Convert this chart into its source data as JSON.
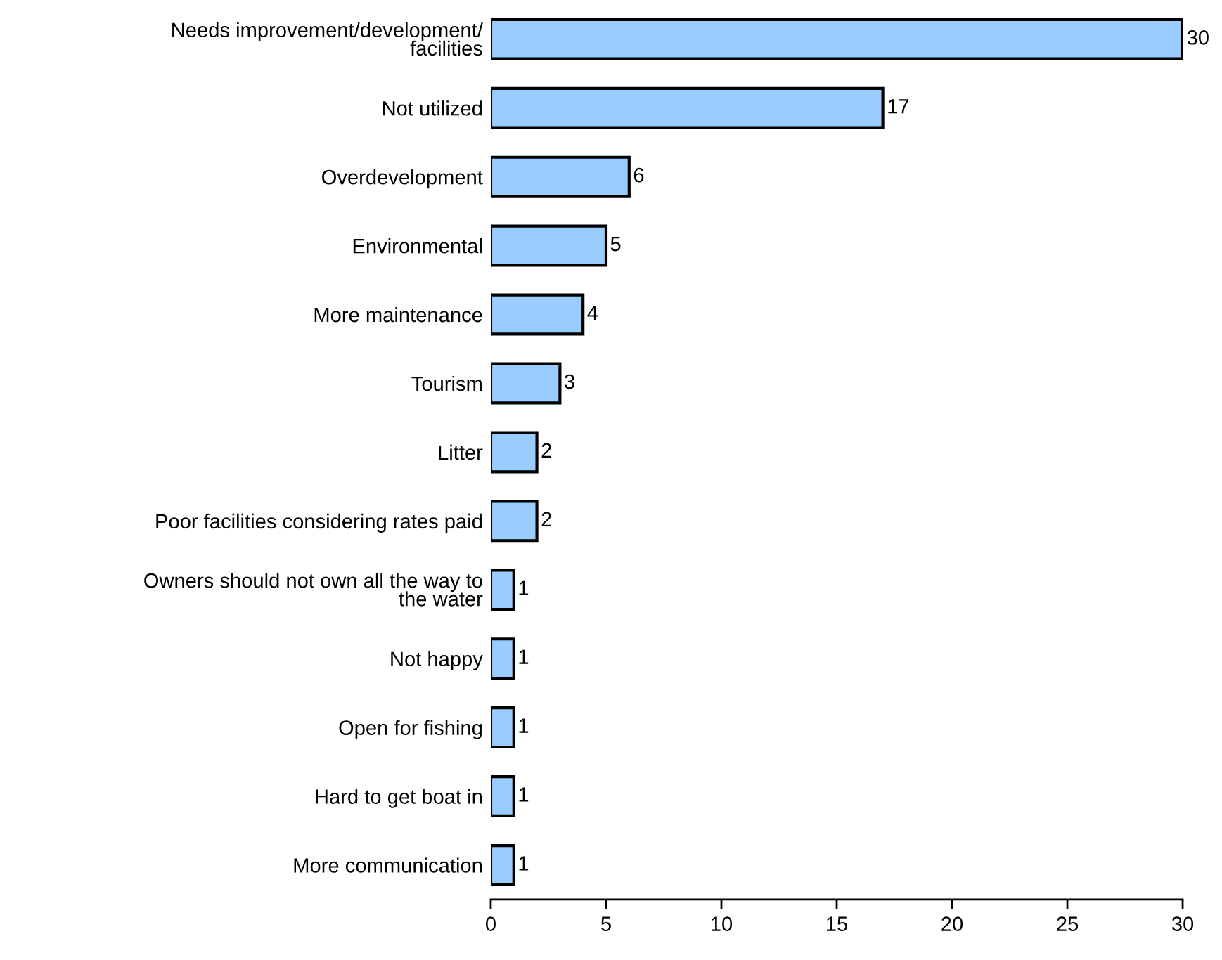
{
  "chart_data": {
    "type": "bar",
    "orientation": "horizontal",
    "categories": [
      "Needs improvement/development/\nfacilities",
      "Not utilized",
      "Overdevelopment",
      "Environmental",
      "More maintenance",
      "Tourism",
      "Litter",
      "Poor facilities considering rates paid",
      "Owners should not own all the way to\nthe water",
      "Not happy",
      "Open for fishing",
      "Hard to get boat in",
      "More communication"
    ],
    "values": [
      30,
      17,
      6,
      5,
      4,
      3,
      2,
      2,
      1,
      1,
      1,
      1,
      1
    ],
    "color": "#99ccff",
    "xlim": [
      0,
      30
    ],
    "xticks": [
      0,
      5,
      10,
      15,
      20,
      25,
      30
    ],
    "data_labels": true,
    "grid": false,
    "legend": false
  }
}
